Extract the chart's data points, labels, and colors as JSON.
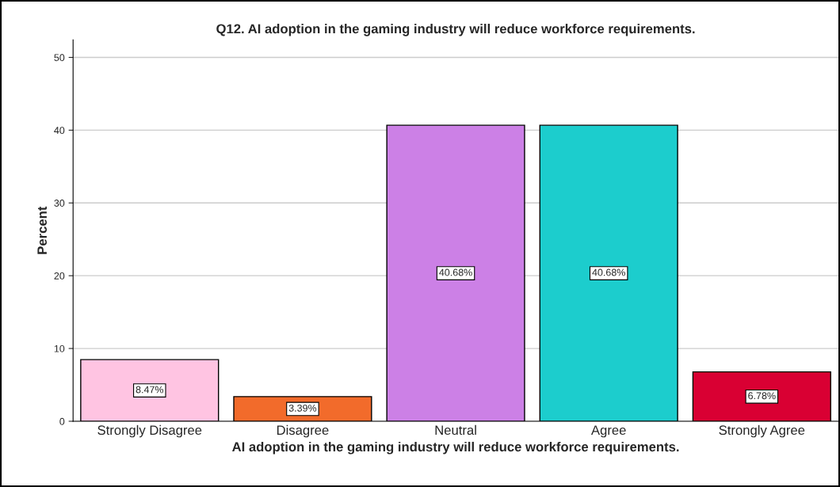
{
  "chart_data": {
    "type": "bar",
    "title": "Q12. AI adoption in the gaming industry will reduce workforce requirements.",
    "xlabel": "AI adoption in the gaming industry will reduce workforce requirements.",
    "ylabel": "Percent",
    "categories": [
      "Strongly Disagree",
      "Disagree",
      "Neutral",
      "Agree",
      "Strongly Agree"
    ],
    "values": [
      8.47,
      3.39,
      40.68,
      40.68,
      6.78
    ],
    "value_labels": [
      "8.47%",
      "3.39%",
      "40.68%",
      "40.68%",
      "6.78%"
    ],
    "colors": [
      "#ffc4e2",
      "#f26b2b",
      "#cc80e6",
      "#1ccdcd",
      "#d90033"
    ],
    "ylim": [
      0,
      52.4
    ],
    "yticks": [
      0,
      10,
      20,
      30,
      40,
      50
    ],
    "grid": "y",
    "legend": false
  }
}
